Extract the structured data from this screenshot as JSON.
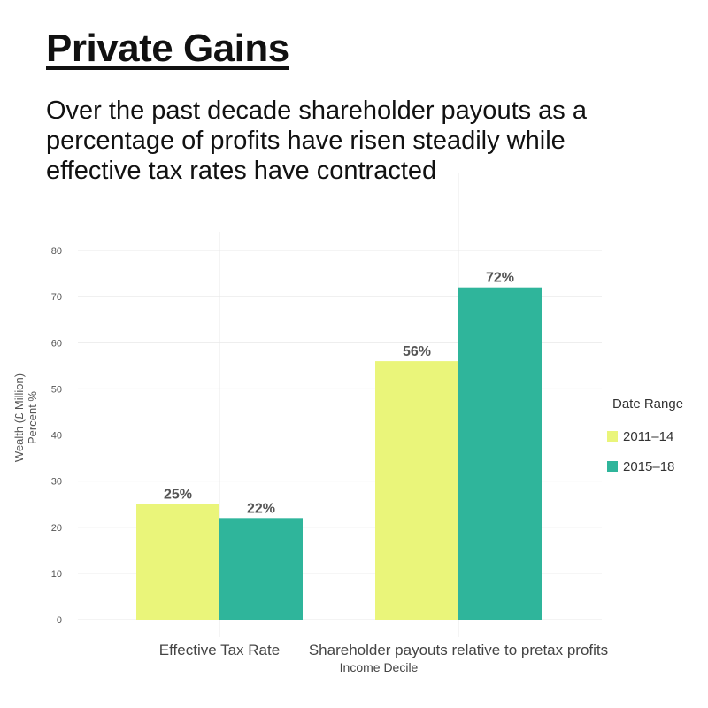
{
  "title": "Private Gains",
  "subtitle": "Over the past decade shareholder payouts as a percentage of profits have risen steadily while effective tax rates have contracted",
  "colors": {
    "s2011": "#eaf57a",
    "s2015": "#2fb59b",
    "grid": "#e8e8e8",
    "label": "#555555"
  },
  "chart_data": {
    "type": "bar",
    "categories": [
      "Effective Tax Rate",
      "Shareholder payouts relative to pretax profits"
    ],
    "series": [
      {
        "name": "2011–14",
        "values": [
          25,
          56
        ],
        "labels": [
          "25%",
          "56%"
        ]
      },
      {
        "name": "2015–18",
        "values": [
          22,
          72
        ],
        "labels": [
          "22%",
          "72%"
        ]
      }
    ],
    "xlabel": "Income Decile",
    "ylabel_lines": [
      "Wealth (£ Million)",
      "Percent %"
    ],
    "ylim": [
      0,
      80
    ],
    "yticks": [
      0,
      10,
      20,
      30,
      40,
      50,
      60,
      70,
      80
    ],
    "legend": {
      "title": "Date Range",
      "placement": "right"
    },
    "grid": true
  }
}
